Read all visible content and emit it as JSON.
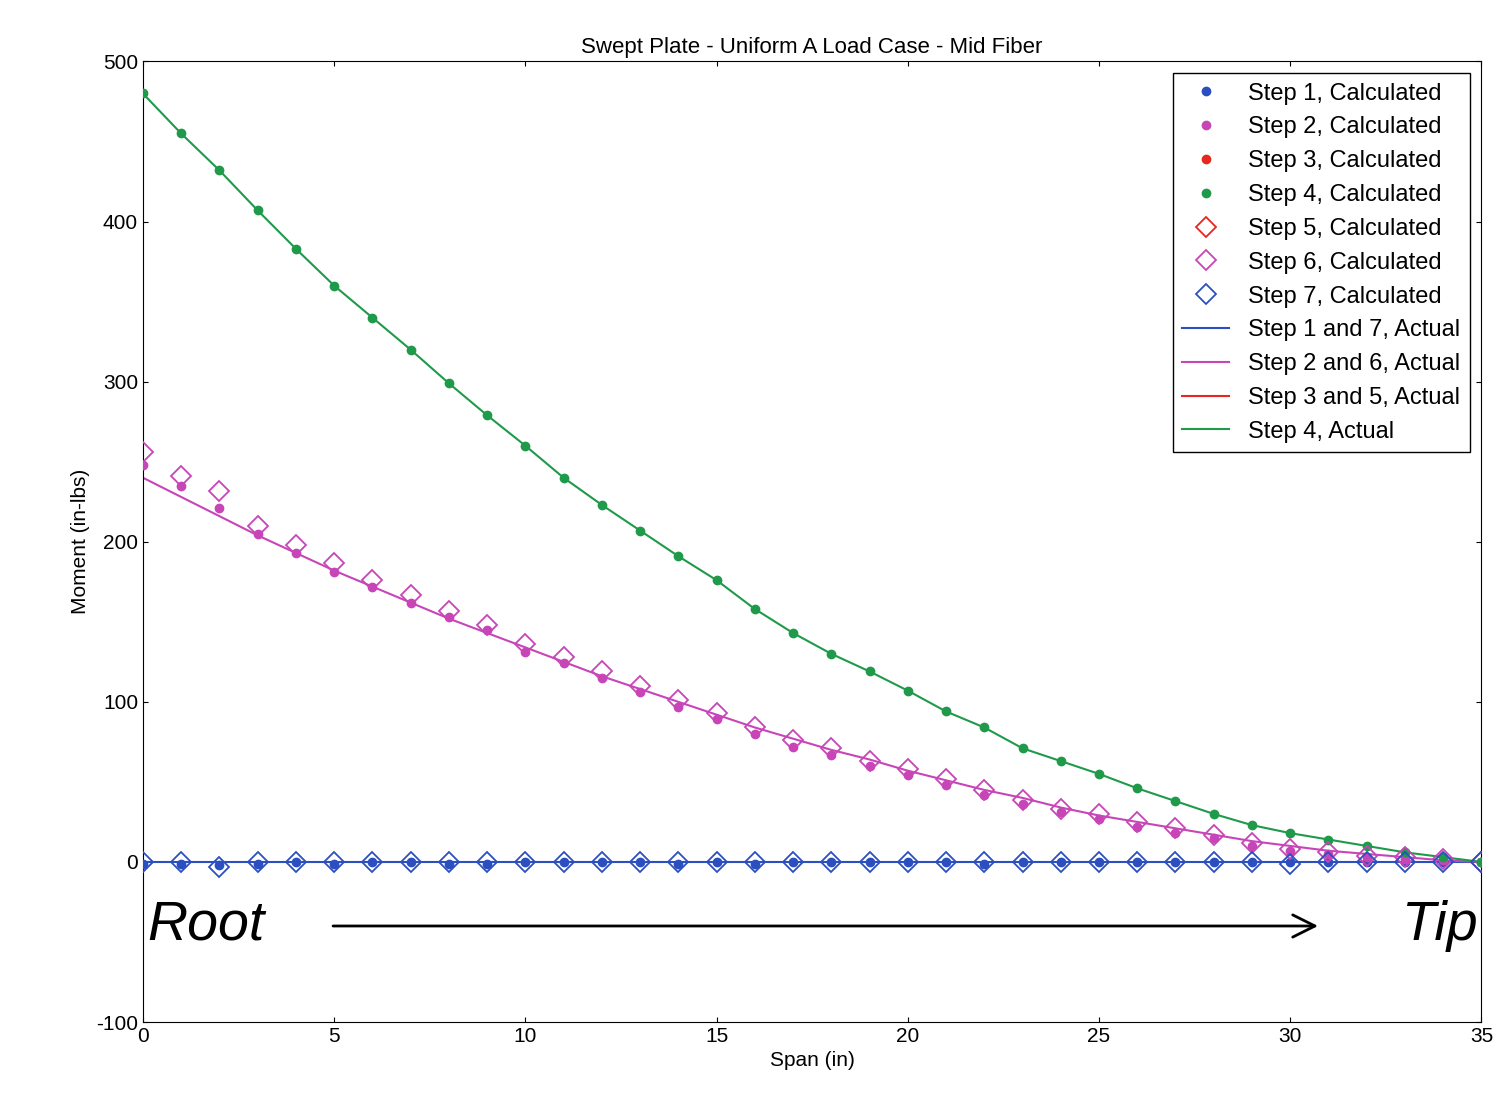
{
  "chart_data": {
    "type": "line",
    "title": "Swept Plate - Uniform A Load Case - Mid Fiber",
    "x_label": "Span (in)",
    "y_label": "Moment (in-lbs)",
    "annotations": [
      "Root",
      "Tip"
    ],
    "x": [
      0,
      1,
      2,
      3,
      4,
      5,
      6,
      7,
      8,
      9,
      10,
      11,
      12,
      13,
      14,
      15,
      16,
      17,
      18,
      19,
      20,
      21,
      22,
      23,
      24,
      25,
      26,
      27,
      28,
      29,
      30,
      31,
      32,
      33,
      34,
      35
    ],
    "xlim": [
      0,
      35
    ],
    "xticks": [
      0,
      5,
      10,
      15,
      20,
      25,
      30,
      35
    ],
    "ylim": [
      -100,
      500
    ],
    "yticks": [
      -100,
      0,
      100,
      200,
      300,
      400,
      500
    ],
    "grid": false,
    "legend": "upper right",
    "series": [
      {
        "name": "Step 1, Calculated",
        "type": "scatter",
        "color": "#2b4fc0",
        "marker": "dot",
        "line_style": "none",
        "values": [
          -1,
          -1,
          -2,
          -1,
          0,
          -1,
          0,
          0,
          -1,
          -1,
          0,
          0,
          0,
          0,
          -1,
          0,
          -1,
          0,
          0,
          0,
          0,
          0,
          -1,
          0,
          0,
          0,
          0,
          0,
          0,
          0,
          0,
          0,
          0,
          0,
          0,
          0
        ]
      },
      {
        "name": "Step 2, Calculated",
        "type": "scatter",
        "color": "#c845b8",
        "marker": "dot",
        "line_style": "none",
        "values": [
          248,
          235,
          221,
          205,
          193,
          181,
          172,
          162,
          153,
          145,
          131,
          124,
          115,
          106,
          97,
          89,
          80,
          72,
          67,
          60,
          54,
          48,
          42,
          36,
          31,
          27,
          22,
          18,
          15,
          10,
          7,
          5,
          3,
          2,
          1,
          0
        ]
      },
      {
        "name": "Step 3, Calculated",
        "type": "scatter",
        "color": "#e8261f",
        "marker": "dot",
        "line_style": "none",
        "values": [
          null,
          null,
          null,
          null,
          null,
          null,
          null,
          null,
          null,
          null,
          null,
          null,
          null,
          null,
          null,
          null,
          null,
          null,
          null,
          null,
          null,
          null,
          null,
          null,
          null,
          null,
          null,
          null,
          null,
          null,
          null,
          null,
          null,
          null,
          null,
          null
        ]
      },
      {
        "name": "Step 4, Calculated",
        "type": "scatter",
        "color": "#1f9a4a",
        "marker": "dot",
        "line_style": "none",
        "values": [
          480,
          455,
          432,
          407,
          383,
          360,
          340,
          320,
          299,
          279,
          260,
          240,
          223,
          207,
          191,
          176,
          158,
          143,
          130,
          119,
          107,
          94,
          84,
          71,
          63,
          55,
          46,
          38,
          30,
          23,
          18,
          14,
          10,
          6,
          3,
          0
        ]
      },
      {
        "name": "Step 5, Calculated",
        "type": "scatter",
        "color": "#e8261f",
        "marker": "open_diamond",
        "line_style": "none",
        "values": [
          null,
          null,
          null,
          null,
          null,
          null,
          null,
          null,
          null,
          null,
          null,
          null,
          null,
          null,
          null,
          null,
          null,
          null,
          null,
          null,
          null,
          null,
          null,
          null,
          null,
          null,
          null,
          null,
          null,
          null,
          null,
          null,
          null,
          null,
          null,
          null
        ]
      },
      {
        "name": "Step 6, Calculated",
        "type": "scatter",
        "color": "#c845b8",
        "marker": "open_diamond",
        "line_style": "none",
        "values": [
          256,
          241,
          232,
          210,
          198,
          187,
          176,
          167,
          157,
          148,
          136,
          128,
          119,
          110,
          101,
          93,
          84,
          76,
          71,
          63,
          58,
          52,
          45,
          39,
          33,
          30,
          25,
          21,
          17,
          12,
          8,
          6,
          4,
          3,
          2,
          0
        ]
      },
      {
        "name": "Step 7, Calculated",
        "type": "scatter",
        "color": "#2b4fc0",
        "marker": "open_diamond",
        "line_style": "none",
        "values": [
          0,
          0,
          -3,
          0,
          0,
          0,
          0,
          0,
          0,
          0,
          0,
          0,
          0,
          0,
          0,
          0,
          0,
          0,
          0,
          0,
          0,
          0,
          0,
          0,
          0,
          0,
          0,
          0,
          0,
          0,
          -1,
          0,
          0,
          0,
          0,
          0
        ]
      },
      {
        "name": "Step 1 and 7, Actual",
        "type": "line",
        "color": "#2b4fc0",
        "marker": "none",
        "line_style": "solid",
        "values": [
          0,
          0,
          0,
          0,
          0,
          0,
          0,
          0,
          0,
          0,
          0,
          0,
          0,
          0,
          0,
          0,
          0,
          0,
          0,
          0,
          0,
          0,
          0,
          0,
          0,
          0,
          0,
          0,
          0,
          0,
          0,
          0,
          0,
          0,
          0,
          0
        ]
      },
      {
        "name": "Step 2 and 6, Actual",
        "type": "line",
        "color": "#c845b8",
        "marker": "none",
        "line_style": "solid",
        "values": [
          240,
          228,
          216,
          204,
          193,
          182,
          172,
          162,
          152,
          143,
          134,
          125,
          116,
          108,
          100,
          92,
          84,
          77,
          70,
          64,
          57,
          51,
          45,
          40,
          34,
          29,
          25,
          21,
          17,
          13,
          10,
          7,
          5,
          3,
          1,
          0
        ]
      },
      {
        "name": "Step 3 and 5, Actual",
        "type": "line",
        "color": "#e8261f",
        "marker": "none",
        "line_style": "solid",
        "values": [
          null,
          null,
          null,
          null,
          null,
          null,
          null,
          null,
          null,
          null,
          null,
          null,
          null,
          null,
          null,
          null,
          null,
          null,
          null,
          null,
          null,
          null,
          null,
          null,
          null,
          null,
          null,
          null,
          null,
          null,
          null,
          null,
          null,
          null,
          null,
          null
        ]
      },
      {
        "name": "Step 4, Actual",
        "type": "line",
        "color": "#1f9a4a",
        "marker": "none",
        "line_style": "solid",
        "values": [
          480,
          455,
          432,
          407,
          383,
          360,
          340,
          320,
          299,
          279,
          260,
          240,
          223,
          207,
          191,
          176,
          158,
          143,
          130,
          119,
          107,
          94,
          84,
          71,
          63,
          55,
          46,
          38,
          30,
          23,
          18,
          14,
          10,
          6,
          3,
          0
        ]
      }
    ]
  }
}
